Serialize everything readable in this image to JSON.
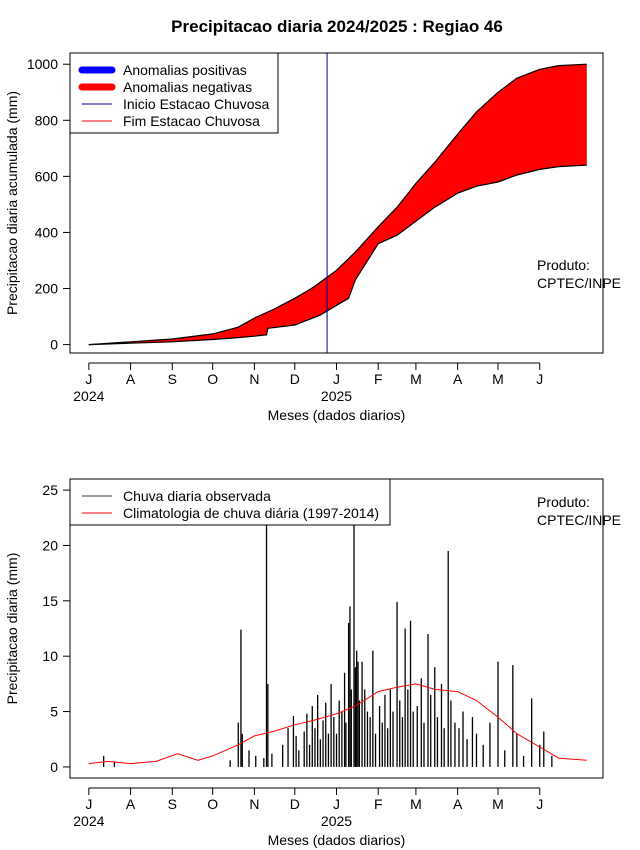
{
  "title": "Precipitacao diaria 2024/2025 : Regiao 46",
  "chart_data": [
    {
      "type": "area",
      "ylabel": "Precipitacao diaria acumulada (mm)",
      "xlabel": "Meses (dados diarios)",
      "x_axis": "time",
      "x_start": "2024-07-01",
      "x_end": "2025-07-06",
      "xlim": [
        "2024-06-17",
        "2025-07-18"
      ],
      "ylim": [
        -30,
        1040
      ],
      "yticks": [
        0,
        200,
        400,
        600,
        800,
        1000
      ],
      "month_ticks": [
        {
          "date": "2024-07-01",
          "label": "J"
        },
        {
          "date": "2024-08-01",
          "label": "A"
        },
        {
          "date": "2024-09-01",
          "label": "S"
        },
        {
          "date": "2024-10-01",
          "label": "O"
        },
        {
          "date": "2024-11-01",
          "label": "N"
        },
        {
          "date": "2024-12-01",
          "label": "D"
        },
        {
          "date": "2025-01-01",
          "label": "J"
        },
        {
          "date": "2025-02-01",
          "label": "F"
        },
        {
          "date": "2025-03-01",
          "label": "M"
        },
        {
          "date": "2025-04-01",
          "label": "A"
        },
        {
          "date": "2025-05-01",
          "label": "M"
        },
        {
          "date": "2025-06-01",
          "label": "J"
        }
      ],
      "year_labels": [
        {
          "date": "2024-07-01",
          "label": "2024"
        },
        {
          "date": "2025-01-01",
          "label": "2025"
        }
      ],
      "series": [
        {
          "name": "climatology_cumulative",
          "color": "#000000",
          "points": [
            {
              "x": "2024-07-01",
              "y": 0
            },
            {
              "x": "2024-08-01",
              "y": 10
            },
            {
              "x": "2024-09-01",
              "y": 20
            },
            {
              "x": "2024-10-01",
              "y": 38
            },
            {
              "x": "2024-10-20",
              "y": 62
            },
            {
              "x": "2024-11-01",
              "y": 95
            },
            {
              "x": "2024-11-15",
              "y": 125
            },
            {
              "x": "2024-12-01",
              "y": 165
            },
            {
              "x": "2024-12-15",
              "y": 205
            },
            {
              "x": "2025-01-01",
              "y": 265
            },
            {
              "x": "2025-01-15",
              "y": 330
            },
            {
              "x": "2025-02-01",
              "y": 420
            },
            {
              "x": "2025-02-15",
              "y": 490
            },
            {
              "x": "2025-03-01",
              "y": 575
            },
            {
              "x": "2025-03-15",
              "y": 650
            },
            {
              "x": "2025-04-01",
              "y": 750
            },
            {
              "x": "2025-04-15",
              "y": 830
            },
            {
              "x": "2025-05-01",
              "y": 900
            },
            {
              "x": "2025-05-15",
              "y": 950
            },
            {
              "x": "2025-06-01",
              "y": 982
            },
            {
              "x": "2025-06-15",
              "y": 995
            },
            {
              "x": "2025-07-06",
              "y": 1000
            }
          ]
        },
        {
          "name": "observed_cumulative",
          "color": "#000000",
          "points": [
            {
              "x": "2024-07-01",
              "y": 0
            },
            {
              "x": "2024-08-01",
              "y": 5
            },
            {
              "x": "2024-09-01",
              "y": 10
            },
            {
              "x": "2024-10-01",
              "y": 18
            },
            {
              "x": "2024-10-20",
              "y": 25
            },
            {
              "x": "2024-11-01",
              "y": 30
            },
            {
              "x": "2024-11-10",
              "y": 35
            },
            {
              "x": "2024-11-11",
              "y": 58
            },
            {
              "x": "2024-12-01",
              "y": 70
            },
            {
              "x": "2024-12-20",
              "y": 105
            },
            {
              "x": "2025-01-01",
              "y": 140
            },
            {
              "x": "2025-01-10",
              "y": 165
            },
            {
              "x": "2025-01-15",
              "y": 230
            },
            {
              "x": "2025-02-01",
              "y": 360
            },
            {
              "x": "2025-02-15",
              "y": 390
            },
            {
              "x": "2025-03-01",
              "y": 440
            },
            {
              "x": "2025-03-15",
              "y": 490
            },
            {
              "x": "2025-04-01",
              "y": 540
            },
            {
              "x": "2025-04-15",
              "y": 565
            },
            {
              "x": "2025-05-01",
              "y": 580
            },
            {
              "x": "2025-05-15",
              "y": 605
            },
            {
              "x": "2025-06-01",
              "y": 625
            },
            {
              "x": "2025-06-15",
              "y": 635
            },
            {
              "x": "2025-07-06",
              "y": 640
            }
          ]
        }
      ],
      "anomaly_fill_color": "#ff0000",
      "rainy_season_start": {
        "date": "2024-12-25",
        "color": "#00008b"
      },
      "legend": {
        "placement": "top-left",
        "items": [
          {
            "label": "Anomalias positivas",
            "color": "#0000ff",
            "style": "thick"
          },
          {
            "label": "Anomalias negativas",
            "color": "#ff0000",
            "style": "thick"
          },
          {
            "label": "Inicio Estacao Chuvosa",
            "color": "#00008b",
            "style": "thin"
          },
          {
            "label": "Fim Estacao Chuvosa",
            "color": "#ff0000",
            "style": "thin"
          }
        ]
      },
      "annotation": [
        "Produto:",
        "CPTEC/INPE"
      ]
    },
    {
      "type": "bar",
      "ylabel": "Precipitacao diaria (mm)",
      "xlabel": "Meses (dados diarios)",
      "x_axis": "time",
      "xlim": [
        "2024-06-17",
        "2025-07-18"
      ],
      "ylim": [
        -1,
        26
      ],
      "yticks": [
        0,
        5,
        10,
        15,
        20,
        25
      ],
      "month_ticks": [
        {
          "date": "2024-07-01",
          "label": "J"
        },
        {
          "date": "2024-08-01",
          "label": "A"
        },
        {
          "date": "2024-09-01",
          "label": "S"
        },
        {
          "date": "2024-10-01",
          "label": "O"
        },
        {
          "date": "2024-11-01",
          "label": "N"
        },
        {
          "date": "2024-12-01",
          "label": "D"
        },
        {
          "date": "2025-01-01",
          "label": "J"
        },
        {
          "date": "2025-02-01",
          "label": "F"
        },
        {
          "date": "2025-03-01",
          "label": "M"
        },
        {
          "date": "2025-04-01",
          "label": "A"
        },
        {
          "date": "2025-05-01",
          "label": "M"
        },
        {
          "date": "2025-06-01",
          "label": "J"
        }
      ],
      "year_labels": [
        {
          "date": "2024-07-01",
          "label": "2024"
        },
        {
          "date": "2025-01-01",
          "label": "2025"
        }
      ],
      "series": [
        {
          "name": "Chuva diaria observada",
          "color": "#000000",
          "bars": [
            {
              "x": "2024-07-12",
              "y": 1.0
            },
            {
              "x": "2024-07-20",
              "y": 0.5
            },
            {
              "x": "2024-10-14",
              "y": 0.6
            },
            {
              "x": "2024-10-20",
              "y": 4.0
            },
            {
              "x": "2024-10-22",
              "y": 12.4
            },
            {
              "x": "2024-10-23",
              "y": 3.0
            },
            {
              "x": "2024-10-28",
              "y": 1.5
            },
            {
              "x": "2024-11-02",
              "y": 1.0
            },
            {
              "x": "2024-11-08",
              "y": 0.8
            },
            {
              "x": "2024-11-10",
              "y": 22.5
            },
            {
              "x": "2024-11-11",
              "y": 7.5
            },
            {
              "x": "2024-11-14",
              "y": 1.2
            },
            {
              "x": "2024-11-22",
              "y": 2.0
            },
            {
              "x": "2024-11-26",
              "y": 3.5
            },
            {
              "x": "2024-11-30",
              "y": 4.6
            },
            {
              "x": "2024-12-02",
              "y": 2.8
            },
            {
              "x": "2024-12-04",
              "y": 1.5
            },
            {
              "x": "2024-12-08",
              "y": 3.2
            },
            {
              "x": "2024-12-10",
              "y": 4.8
            },
            {
              "x": "2024-12-12",
              "y": 2.0
            },
            {
              "x": "2024-12-14",
              "y": 5.5
            },
            {
              "x": "2024-12-16",
              "y": 3.5
            },
            {
              "x": "2024-12-18",
              "y": 6.5
            },
            {
              "x": "2024-12-20",
              "y": 2.5
            },
            {
              "x": "2024-12-22",
              "y": 4.2
            },
            {
              "x": "2024-12-24",
              "y": 5.8
            },
            {
              "x": "2024-12-26",
              "y": 3.0
            },
            {
              "x": "2024-12-28",
              "y": 7.5
            },
            {
              "x": "2024-12-30",
              "y": 4.5
            },
            {
              "x": "2025-01-01",
              "y": 3.0
            },
            {
              "x": "2025-01-03",
              "y": 6.0
            },
            {
              "x": "2025-01-05",
              "y": 5.0
            },
            {
              "x": "2025-01-07",
              "y": 8.5
            },
            {
              "x": "2025-01-08",
              "y": 4.0
            },
            {
              "x": "2025-01-10",
              "y": 13.0
            },
            {
              "x": "2025-01-11",
              "y": 14.5
            },
            {
              "x": "2025-01-12",
              "y": 7.0
            },
            {
              "x": "2025-01-14",
              "y": 25.0
            },
            {
              "x": "2025-01-15",
              "y": 9.0
            },
            {
              "x": "2025-01-16",
              "y": 10.5
            },
            {
              "x": "2025-01-17",
              "y": 9.5
            },
            {
              "x": "2025-01-18",
              "y": 6.0
            },
            {
              "x": "2025-01-20",
              "y": 9.5
            },
            {
              "x": "2025-01-22",
              "y": 7.0
            },
            {
              "x": "2025-01-24",
              "y": 5.0
            },
            {
              "x": "2025-01-26",
              "y": 4.5
            },
            {
              "x": "2025-01-28",
              "y": 10.5
            },
            {
              "x": "2025-01-30",
              "y": 3.0
            },
            {
              "x": "2025-02-02",
              "y": 5.5
            },
            {
              "x": "2025-02-04",
              "y": 4.0
            },
            {
              "x": "2025-02-06",
              "y": 6.5
            },
            {
              "x": "2025-02-08",
              "y": 3.5
            },
            {
              "x": "2025-02-10",
              "y": 7.0
            },
            {
              "x": "2025-02-12",
              "y": 5.0
            },
            {
              "x": "2025-02-15",
              "y": 14.9
            },
            {
              "x": "2025-02-17",
              "y": 6.0
            },
            {
              "x": "2025-02-19",
              "y": 4.5
            },
            {
              "x": "2025-02-21",
              "y": 12.5
            },
            {
              "x": "2025-02-23",
              "y": 7.0
            },
            {
              "x": "2025-02-25",
              "y": 13.2
            },
            {
              "x": "2025-02-27",
              "y": 5.0
            },
            {
              "x": "2025-03-02",
              "y": 5.5
            },
            {
              "x": "2025-03-05",
              "y": 8.0
            },
            {
              "x": "2025-03-07",
              "y": 4.0
            },
            {
              "x": "2025-03-10",
              "y": 12.0
            },
            {
              "x": "2025-03-12",
              "y": 6.5
            },
            {
              "x": "2025-03-15",
              "y": 9.0
            },
            {
              "x": "2025-03-17",
              "y": 4.5
            },
            {
              "x": "2025-03-20",
              "y": 7.5
            },
            {
              "x": "2025-03-22",
              "y": 3.5
            },
            {
              "x": "2025-03-25",
              "y": 19.5
            },
            {
              "x": "2025-03-27",
              "y": 6.0
            },
            {
              "x": "2025-03-30",
              "y": 4.0
            },
            {
              "x": "2025-04-02",
              "y": 3.5
            },
            {
              "x": "2025-04-05",
              "y": 5.0
            },
            {
              "x": "2025-04-08",
              "y": 2.5
            },
            {
              "x": "2025-04-12",
              "y": 4.5
            },
            {
              "x": "2025-04-15",
              "y": 3.0
            },
            {
              "x": "2025-04-20",
              "y": 2.0
            },
            {
              "x": "2025-04-25",
              "y": 4.0
            },
            {
              "x": "2025-05-01",
              "y": 9.5
            },
            {
              "x": "2025-05-06",
              "y": 1.5
            },
            {
              "x": "2025-05-12",
              "y": 9.2
            },
            {
              "x": "2025-05-15",
              "y": 3.0
            },
            {
              "x": "2025-05-20",
              "y": 1.0
            },
            {
              "x": "2025-05-26",
              "y": 6.2
            },
            {
              "x": "2025-06-01",
              "y": 2.0
            },
            {
              "x": "2025-06-04",
              "y": 3.2
            },
            {
              "x": "2025-06-10",
              "y": 1.0
            }
          ]
        },
        {
          "name": "Climatologia de chuva diária (1997-2014)",
          "color": "#ff0000",
          "points": [
            {
              "x": "2024-07-01",
              "y": 0.3
            },
            {
              "x": "2024-07-15",
              "y": 0.5
            },
            {
              "x": "2024-08-01",
              "y": 0.3
            },
            {
              "x": "2024-08-20",
              "y": 0.5
            },
            {
              "x": "2024-09-05",
              "y": 1.2
            },
            {
              "x": "2024-09-20",
              "y": 0.6
            },
            {
              "x": "2024-10-01",
              "y": 1.0
            },
            {
              "x": "2024-10-20",
              "y": 2.0
            },
            {
              "x": "2024-11-01",
              "y": 2.8
            },
            {
              "x": "2024-11-15",
              "y": 3.2
            },
            {
              "x": "2024-12-01",
              "y": 3.8
            },
            {
              "x": "2024-12-15",
              "y": 4.2
            },
            {
              "x": "2025-01-01",
              "y": 4.8
            },
            {
              "x": "2025-01-15",
              "y": 5.5
            },
            {
              "x": "2025-02-01",
              "y": 6.8
            },
            {
              "x": "2025-02-15",
              "y": 7.2
            },
            {
              "x": "2025-03-01",
              "y": 7.5
            },
            {
              "x": "2025-03-15",
              "y": 7.0
            },
            {
              "x": "2025-04-01",
              "y": 6.8
            },
            {
              "x": "2025-04-15",
              "y": 6.0
            },
            {
              "x": "2025-05-01",
              "y": 4.5
            },
            {
              "x": "2025-05-15",
              "y": 3.0
            },
            {
              "x": "2025-06-01",
              "y": 1.8
            },
            {
              "x": "2025-06-15",
              "y": 0.8
            },
            {
              "x": "2025-07-06",
              "y": 0.6
            }
          ]
        }
      ],
      "legend": {
        "placement": "top-left",
        "items": [
          {
            "label": "Chuva diaria observada",
            "color": "#333333"
          },
          {
            "label": "Climatologia de chuva diária (1997-2014)",
            "color": "#ff0000"
          }
        ]
      },
      "annotation": [
        "Produto:",
        "CPTEC/INPE"
      ]
    }
  ]
}
